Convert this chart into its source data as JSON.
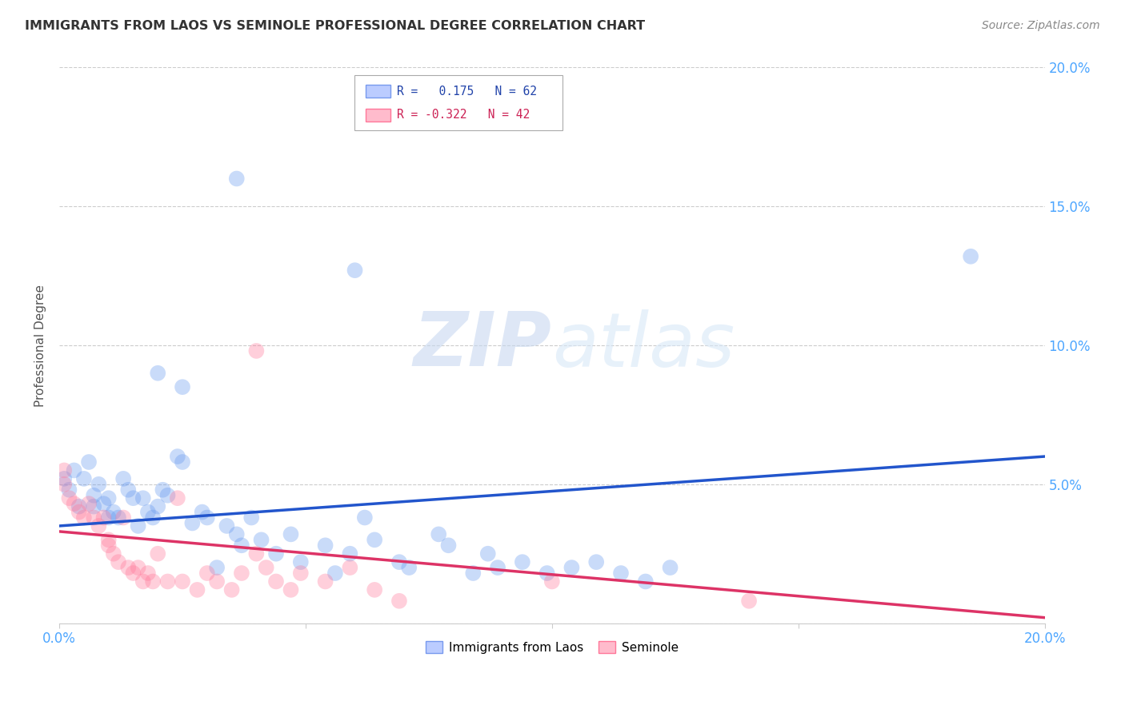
{
  "title": "IMMIGRANTS FROM LAOS VS SEMINOLE PROFESSIONAL DEGREE CORRELATION CHART",
  "source": "Source: ZipAtlas.com",
  "ylabel": "Professional Degree",
  "xlim": [
    0.0,
    0.2
  ],
  "ylim": [
    0.0,
    0.2
  ],
  "xticks": [
    0.0,
    0.05,
    0.1,
    0.15,
    0.2
  ],
  "yticks": [
    0.0,
    0.05,
    0.1,
    0.15,
    0.2
  ],
  "xtick_labels_bottom": [
    "0.0%",
    "",
    "",
    "",
    "20.0%"
  ],
  "ytick_labels_right": [
    "",
    "5.0%",
    "10.0%",
    "15.0%",
    "20.0%"
  ],
  "watermark": "ZIPatlas",
  "legend_box": {
    "blue_r": " 0.175",
    "blue_n": "62",
    "pink_r": "-0.322",
    "pink_n": "42"
  },
  "blue_scatter": [
    [
      0.001,
      0.052
    ],
    [
      0.002,
      0.048
    ],
    [
      0.003,
      0.055
    ],
    [
      0.004,
      0.042
    ],
    [
      0.005,
      0.052
    ],
    [
      0.006,
      0.058
    ],
    [
      0.007,
      0.046
    ],
    [
      0.007,
      0.042
    ],
    [
      0.008,
      0.05
    ],
    [
      0.009,
      0.043
    ],
    [
      0.01,
      0.038
    ],
    [
      0.01,
      0.045
    ],
    [
      0.011,
      0.04
    ],
    [
      0.012,
      0.038
    ],
    [
      0.013,
      0.052
    ],
    [
      0.014,
      0.048
    ],
    [
      0.015,
      0.045
    ],
    [
      0.016,
      0.035
    ],
    [
      0.017,
      0.045
    ],
    [
      0.018,
      0.04
    ],
    [
      0.019,
      0.038
    ],
    [
      0.02,
      0.042
    ],
    [
      0.021,
      0.048
    ],
    [
      0.022,
      0.046
    ],
    [
      0.024,
      0.06
    ],
    [
      0.025,
      0.058
    ],
    [
      0.027,
      0.036
    ],
    [
      0.029,
      0.04
    ],
    [
      0.03,
      0.038
    ],
    [
      0.032,
      0.02
    ],
    [
      0.034,
      0.035
    ],
    [
      0.036,
      0.032
    ],
    [
      0.037,
      0.028
    ],
    [
      0.039,
      0.038
    ],
    [
      0.041,
      0.03
    ],
    [
      0.044,
      0.025
    ],
    [
      0.047,
      0.032
    ],
    [
      0.049,
      0.022
    ],
    [
      0.054,
      0.028
    ],
    [
      0.056,
      0.018
    ],
    [
      0.059,
      0.025
    ],
    [
      0.062,
      0.038
    ],
    [
      0.064,
      0.03
    ],
    [
      0.069,
      0.022
    ],
    [
      0.071,
      0.02
    ],
    [
      0.077,
      0.032
    ],
    [
      0.079,
      0.028
    ],
    [
      0.084,
      0.018
    ],
    [
      0.087,
      0.025
    ],
    [
      0.089,
      0.02
    ],
    [
      0.094,
      0.022
    ],
    [
      0.099,
      0.018
    ],
    [
      0.104,
      0.02
    ],
    [
      0.109,
      0.022
    ],
    [
      0.114,
      0.018
    ],
    [
      0.119,
      0.015
    ],
    [
      0.124,
      0.02
    ],
    [
      0.02,
      0.09
    ],
    [
      0.025,
      0.085
    ],
    [
      0.036,
      0.16
    ],
    [
      0.06,
      0.127
    ],
    [
      0.185,
      0.132
    ]
  ],
  "pink_scatter": [
    [
      0.001,
      0.05
    ],
    [
      0.001,
      0.055
    ],
    [
      0.002,
      0.045
    ],
    [
      0.003,
      0.043
    ],
    [
      0.004,
      0.04
    ],
    [
      0.005,
      0.038
    ],
    [
      0.006,
      0.043
    ],
    [
      0.007,
      0.038
    ],
    [
      0.008,
      0.035
    ],
    [
      0.009,
      0.038
    ],
    [
      0.01,
      0.03
    ],
    [
      0.01,
      0.028
    ],
    [
      0.011,
      0.025
    ],
    [
      0.012,
      0.022
    ],
    [
      0.013,
      0.038
    ],
    [
      0.014,
      0.02
    ],
    [
      0.015,
      0.018
    ],
    [
      0.016,
      0.02
    ],
    [
      0.017,
      0.015
    ],
    [
      0.018,
      0.018
    ],
    [
      0.019,
      0.015
    ],
    [
      0.02,
      0.025
    ],
    [
      0.022,
      0.015
    ],
    [
      0.024,
      0.045
    ],
    [
      0.025,
      0.015
    ],
    [
      0.028,
      0.012
    ],
    [
      0.03,
      0.018
    ],
    [
      0.032,
      0.015
    ],
    [
      0.035,
      0.012
    ],
    [
      0.037,
      0.018
    ],
    [
      0.04,
      0.025
    ],
    [
      0.042,
      0.02
    ],
    [
      0.044,
      0.015
    ],
    [
      0.047,
      0.012
    ],
    [
      0.049,
      0.018
    ],
    [
      0.054,
      0.015
    ],
    [
      0.059,
      0.02
    ],
    [
      0.064,
      0.012
    ],
    [
      0.069,
      0.008
    ],
    [
      0.1,
      0.015
    ],
    [
      0.04,
      0.098
    ],
    [
      0.14,
      0.008
    ]
  ],
  "blue_line": [
    [
      0.0,
      0.035
    ],
    [
      0.2,
      0.06
    ]
  ],
  "pink_line": [
    [
      0.0,
      0.033
    ],
    [
      0.2,
      0.002
    ]
  ],
  "blue_color": "#6699ee",
  "pink_color": "#ff7799",
  "blue_line_color": "#2255cc",
  "pink_line_color": "#dd3366",
  "background_color": "#ffffff",
  "grid_color": "#cccccc"
}
